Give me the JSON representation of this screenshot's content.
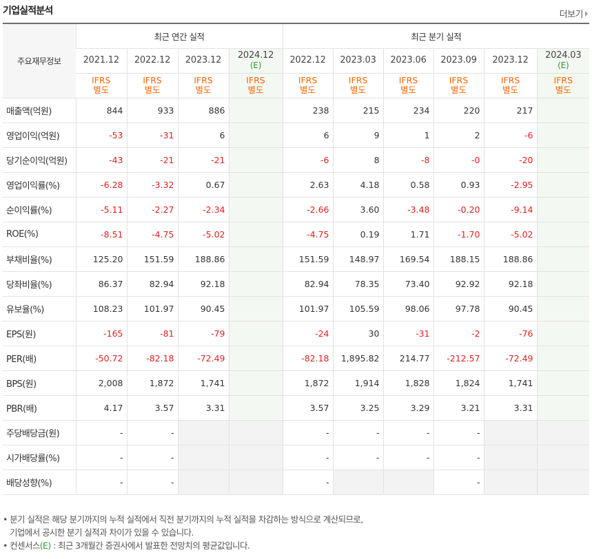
{
  "title": "기업실적분석",
  "more_label": "더보기",
  "header": {
    "item_label": "주요재무정보",
    "annual_label": "최근 연간 실적",
    "quarter_label": "최근 분기 실적",
    "annual_periods": [
      "2021.12",
      "2022.12",
      "2023.12",
      "2024.12"
    ],
    "annual_est_mark": "(E)",
    "quarter_periods": [
      "2022.12",
      "2023.03",
      "2023.06",
      "2023.09",
      "2023.12",
      "2024.03"
    ],
    "quarter_est_mark": "(E)",
    "ifrs_line1": "IFRS",
    "ifrs_line2": "별도"
  },
  "rows": [
    {
      "label": "매출액(억원)",
      "annual": [
        "844",
        "933",
        "886",
        ""
      ],
      "quarter": [
        "238",
        "215",
        "234",
        "220",
        "217",
        ""
      ]
    },
    {
      "label": "영업이익(억원)",
      "annual": [
        "-53",
        "-31",
        "6",
        ""
      ],
      "quarter": [
        "6",
        "9",
        "1",
        "2",
        "-6",
        ""
      ]
    },
    {
      "label": "당기순이익(억원)",
      "annual": [
        "-43",
        "-21",
        "-21",
        ""
      ],
      "quarter": [
        "-6",
        "8",
        "-8",
        "-0",
        "-20",
        ""
      ]
    },
    {
      "label": "영업이익률(%)",
      "annual": [
        "-6.28",
        "-3.32",
        "0.67",
        ""
      ],
      "quarter": [
        "2.63",
        "4.18",
        "0.58",
        "0.93",
        "-2.95",
        ""
      ]
    },
    {
      "label": "순이익률(%)",
      "annual": [
        "-5.11",
        "-2.27",
        "-2.34",
        ""
      ],
      "quarter": [
        "-2.66",
        "3.60",
        "-3.48",
        "-0.20",
        "-9.14",
        ""
      ]
    },
    {
      "label": "ROE(%)",
      "annual": [
        "-8.51",
        "-4.75",
        "-5.02",
        ""
      ],
      "quarter": [
        "-4.75",
        "0.19",
        "1.71",
        "-1.70",
        "-5.02",
        ""
      ]
    },
    {
      "label": "부채비율(%)",
      "annual": [
        "125.20",
        "151.59",
        "188.86",
        ""
      ],
      "quarter": [
        "151.59",
        "148.97",
        "169.54",
        "188.15",
        "188.86",
        ""
      ]
    },
    {
      "label": "당좌비율(%)",
      "annual": [
        "86.37",
        "82.94",
        "92.18",
        ""
      ],
      "quarter": [
        "82.94",
        "78.35",
        "73.40",
        "92.92",
        "92.18",
        ""
      ]
    },
    {
      "label": "유보율(%)",
      "annual": [
        "108.23",
        "101.97",
        "90.45",
        ""
      ],
      "quarter": [
        "101.97",
        "105.59",
        "98.06",
        "97.78",
        "90.45",
        ""
      ]
    },
    {
      "label": "EPS(원)",
      "annual": [
        "-165",
        "-81",
        "-79",
        ""
      ],
      "quarter": [
        "-24",
        "30",
        "-31",
        "-2",
        "-76",
        ""
      ]
    },
    {
      "label": "PER(배)",
      "annual": [
        "-50.72",
        "-82.18",
        "-72.49",
        ""
      ],
      "quarter": [
        "-82.18",
        "1,895.82",
        "214.77",
        "-212.57",
        "-72.49",
        ""
      ]
    },
    {
      "label": "BPS(원)",
      "annual": [
        "2,008",
        "1,872",
        "1,741",
        ""
      ],
      "quarter": [
        "1,872",
        "1,914",
        "1,828",
        "1,824",
        "1,741",
        ""
      ]
    },
    {
      "label": "PBR(배)",
      "annual": [
        "4.17",
        "3.57",
        "3.31",
        ""
      ],
      "quarter": [
        "3.57",
        "3.25",
        "3.29",
        "3.21",
        "3.31",
        ""
      ]
    },
    {
      "label": "주당배당금(원)",
      "annual": [
        "-",
        "-",
        null,
        null
      ],
      "quarter": [
        "-",
        "-",
        "-",
        "-",
        null,
        null
      ]
    },
    {
      "label": "시가배당률(%)",
      "annual": [
        "-",
        "-",
        null,
        null
      ],
      "quarter": [
        "-",
        "-",
        "-",
        "-",
        null,
        null
      ]
    },
    {
      "label": "배당성향(%)",
      "annual": [
        "-",
        "-",
        null,
        null
      ],
      "quarter": [
        "-",
        null,
        null,
        "-",
        null,
        null
      ]
    }
  ],
  "notes": {
    "line1": "• 분기 실적은 해당 분기까지의 누적 실적에서 직전 분기까지의 누적 실적을 차감하는 방식으로 계산되므로,",
    "line2": "  기업에서 공시한 분기 실적과 차이가 있을 수 있습니다.",
    "line3_prefix": "• 컨센서스",
    "line3_mark": "(E)",
    "line3_suffix": " : 최근 3개월간 증권사에서 발표한 전망치의 평균값입니다."
  }
}
